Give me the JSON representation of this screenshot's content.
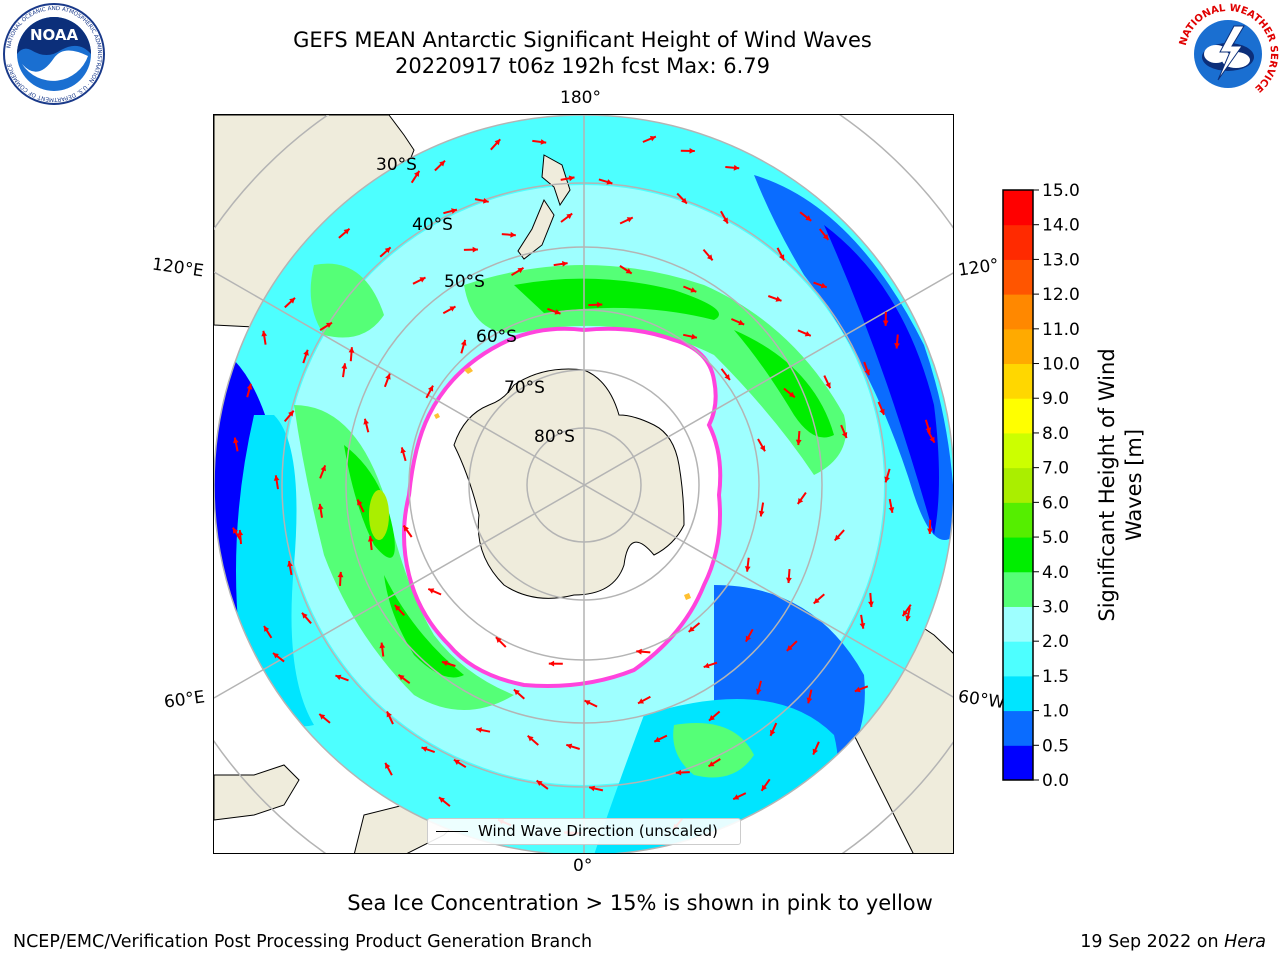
{
  "title": {
    "line1": "GEFS MEAN Antarctic Significant Height of Wind Waves",
    "line2": "20220917 t06z 192h fcst   Max: 6.79"
  },
  "logos": {
    "left": {
      "name": "noaa-logo",
      "text": "NOAA",
      "ring_text": "NATIONAL OCEANIC AND ATMOSPHERIC ADMINISTRATION · U.S. DEPARTMENT OF COMMERCE"
    },
    "right": {
      "name": "nws-logo",
      "ring_text": "NATIONAL WEATHER SERVICE"
    }
  },
  "map": {
    "projection": "south-polar-stereographic",
    "lon_labels": {
      "top": "180°",
      "bottom": "0°",
      "upper_left": "120°E",
      "upper_right": "120°",
      "lower_left": "60°E",
      "lower_right": "60°W"
    },
    "lat_labels": [
      "30°S",
      "40°S",
      "50°S",
      "60°S",
      "70°S",
      "80°S"
    ],
    "colors": {
      "land": "#efecdc",
      "ice": "#ffffff",
      "ice_edge": "#ff44dd",
      "arrow": "#ff0000",
      "grid": "#b4b4b4"
    }
  },
  "legend": {
    "label": "Wind Wave Direction (unscaled)"
  },
  "colorbar": {
    "label_line1": "Significant Height of Wind",
    "label_line2": "Waves [m]",
    "ticks": [
      "0.0",
      "0.5",
      "1.0",
      "1.5",
      "2.0",
      "3.0",
      "4.0",
      "5.0",
      "6.0",
      "7.0",
      "8.0",
      "9.0",
      "10.0",
      "11.0",
      "12.0",
      "13.0",
      "14.0",
      "15.0"
    ],
    "colors": [
      "#0000ff",
      "#0a6cff",
      "#00e5ff",
      "#4dffff",
      "#9effff",
      "#55ff77",
      "#00ee00",
      "#55ee00",
      "#aaee00",
      "#ccff00",
      "#ffff00",
      "#ffd700",
      "#ffaa00",
      "#ff8800",
      "#ff5500",
      "#ff2a00",
      "#ff0000"
    ]
  },
  "note": "Sea Ice Concentration > 15% is shown in pink to yellow",
  "footer": {
    "left": "NCEP/EMC/Verification Post Processing Product Generation Branch",
    "right_prefix": "19 Sep 2022 on ",
    "right_host": "Hera"
  }
}
